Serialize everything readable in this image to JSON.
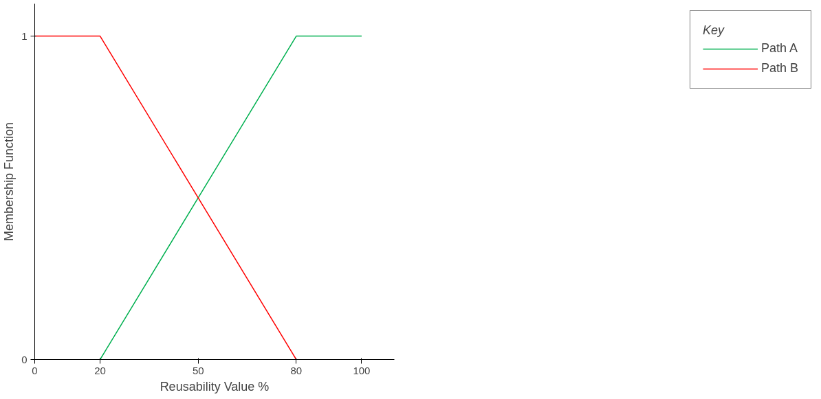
{
  "chart_data": {
    "type": "line",
    "xlabel": "Reusability Value %",
    "ylabel": "Membership Function",
    "legend_title": "Key",
    "legend": "right",
    "xlim": [
      0,
      110
    ],
    "ylim": [
      0,
      1.1
    ],
    "xticks": [
      0,
      20,
      50,
      80,
      100
    ],
    "yticks": [
      0,
      1
    ],
    "grid": false,
    "series": [
      {
        "name": "Path A",
        "color": "#00b050",
        "x": [
          20,
          80,
          100
        ],
        "values": [
          0,
          1,
          1
        ]
      },
      {
        "name": "Path B",
        "color": "#ff0000",
        "x": [
          0,
          20,
          80
        ],
        "values": [
          1,
          1,
          0
        ]
      }
    ]
  }
}
